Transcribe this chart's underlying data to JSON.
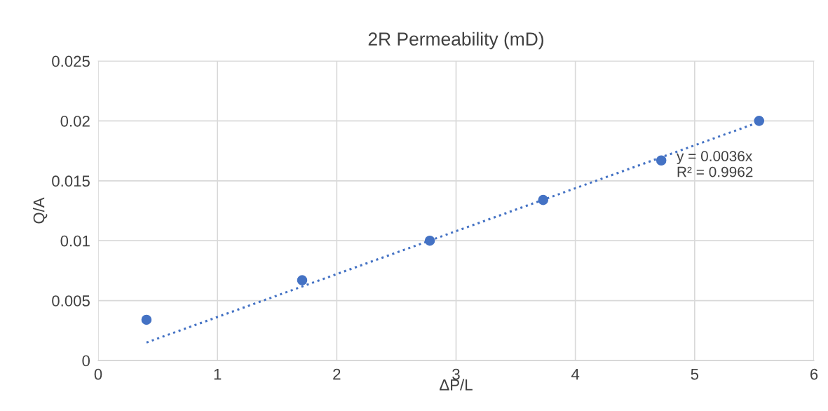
{
  "chart_data": {
    "type": "scatter",
    "title": "2R Permeability (mD)",
    "xlabel": "ΔP/L",
    "ylabel": "Q/A",
    "series": [
      {
        "type": "scatter",
        "color": "#4472c4",
        "x": [
          0.405,
          1.71,
          2.78,
          3.73,
          4.72,
          5.54
        ],
        "values": [
          0.0034,
          0.0067,
          0.01,
          0.0134,
          0.0167,
          0.02
        ],
        "marker": "circle"
      },
      {
        "type": "line",
        "color": "#4472c4",
        "x": [
          0.405,
          5.54
        ],
        "values": [
          0.0015,
          0.0199
        ],
        "line_style": "dotted"
      }
    ],
    "annotations": [
      "y = 0.0036x\nR² = 0.9962"
    ],
    "xlim": [
      0,
      6
    ],
    "xticks": [
      0,
      1,
      2,
      3,
      4,
      5,
      6
    ],
    "ylim": [
      0,
      0.025
    ],
    "yticks": [
      0,
      0.005,
      0.01,
      0.015,
      0.02,
      0.025
    ],
    "grid": true
  }
}
